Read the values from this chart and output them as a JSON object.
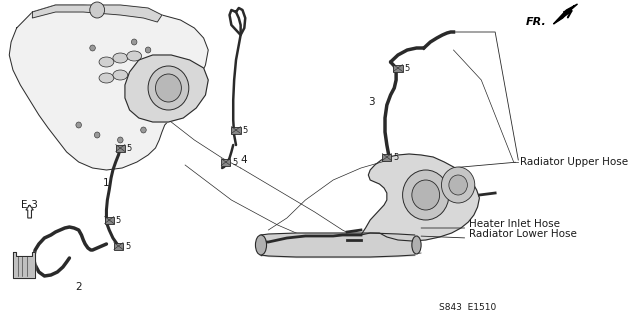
{
  "bg_color": "#ffffff",
  "fig_width": 6.4,
  "fig_height": 3.19,
  "dpi": 100,
  "labels": {
    "radiator_upper_hose": "Radiator Upper Hose",
    "heater_inlet_hose": "Heater Inlet Hose",
    "radiator_lower_hose": "Radiator Lower Hose",
    "fr_label": "FR.",
    "e3_label": "E-3",
    "part_number": "S843  E1510"
  },
  "line_color": "#2a2a2a",
  "text_color": "#1a1a1a",
  "gray_fill": "#e8e8e8",
  "dark_fill": "#555555"
}
